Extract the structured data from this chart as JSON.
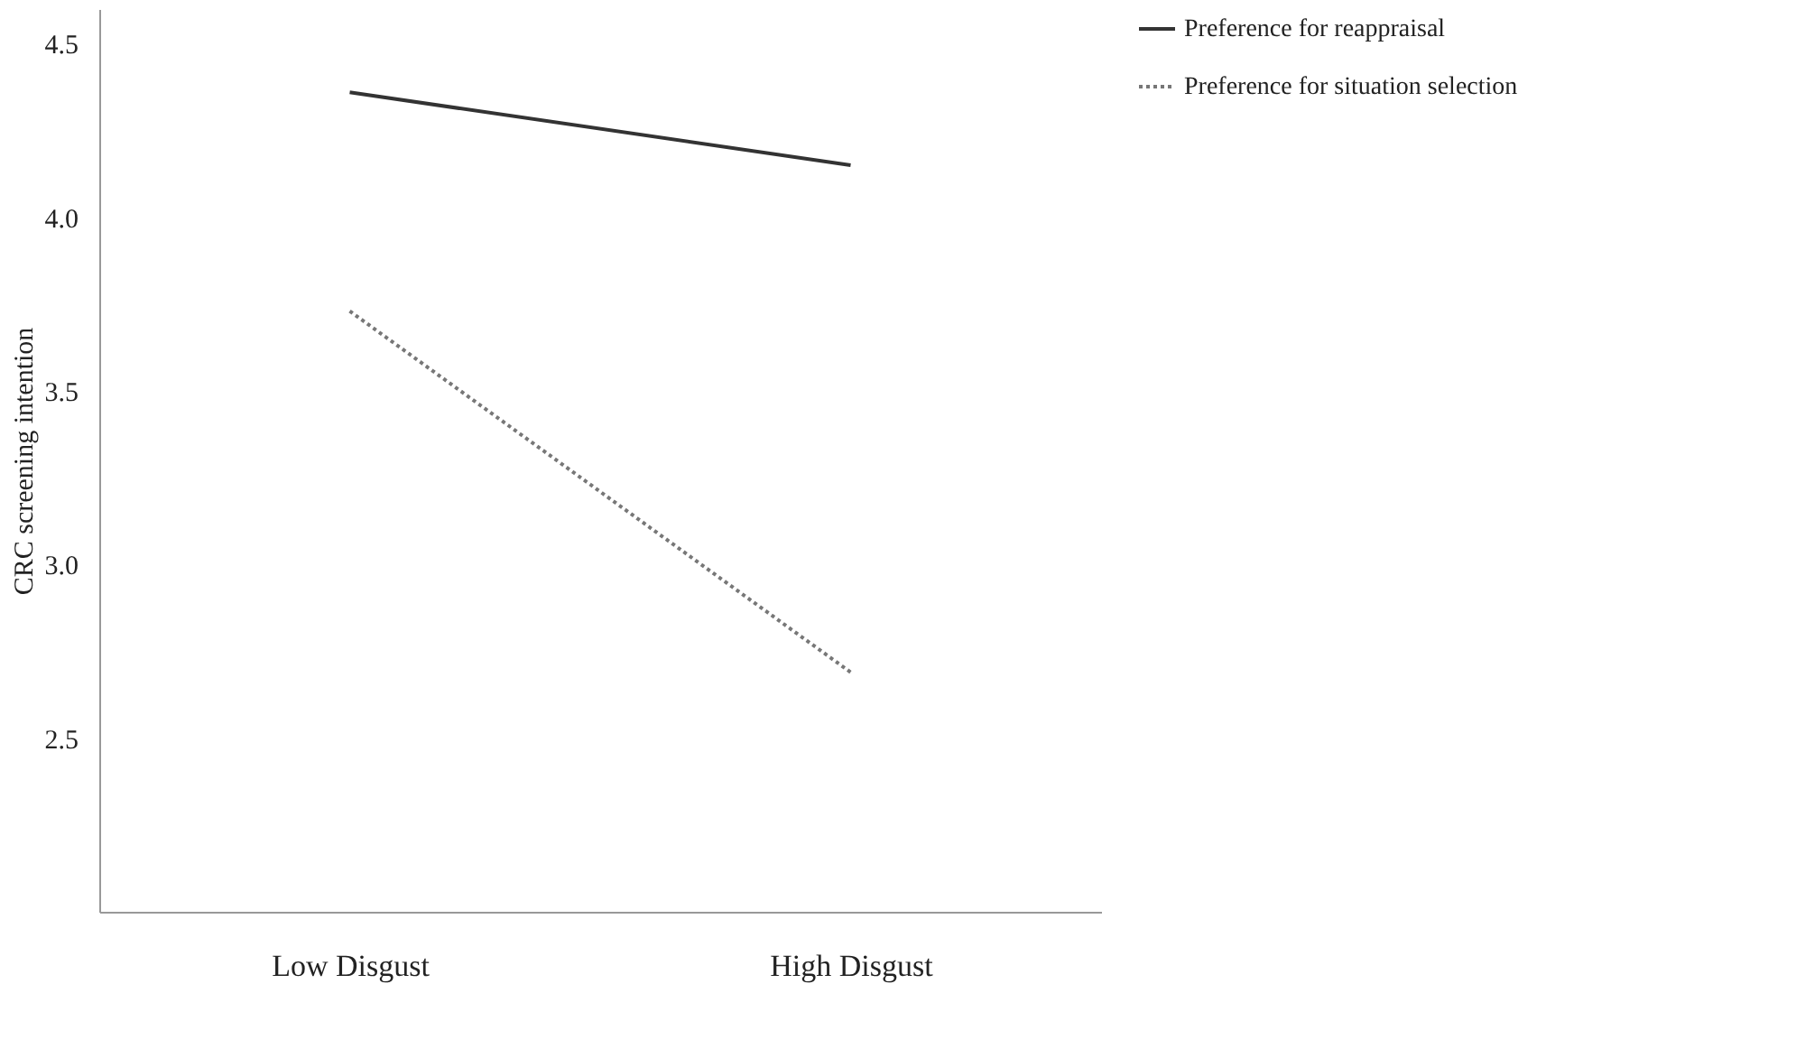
{
  "chart_data": {
    "type": "line",
    "ylabel": "CRC screening intention",
    "categories": [
      "Low Disgust",
      "High Disgust"
    ],
    "series": [
      {
        "name": "Preference for reappraisal",
        "color": "#333333",
        "line_style": "solid",
        "values": [
          4.36,
          4.15
        ]
      },
      {
        "name": "Preference for situation selection",
        "color": "#777777",
        "line_style": "dotted",
        "values": [
          3.73,
          2.69
        ]
      }
    ],
    "ylim": [
      2.0,
      4.6
    ],
    "yticks": [
      2.5,
      {
        "value": 3,
        "label": "3.0"
      },
      3.5,
      {
        "value": 4,
        "label": "4.0"
      },
      4.5
    ],
    "grid": false,
    "legend": "right",
    "marker": "none"
  }
}
